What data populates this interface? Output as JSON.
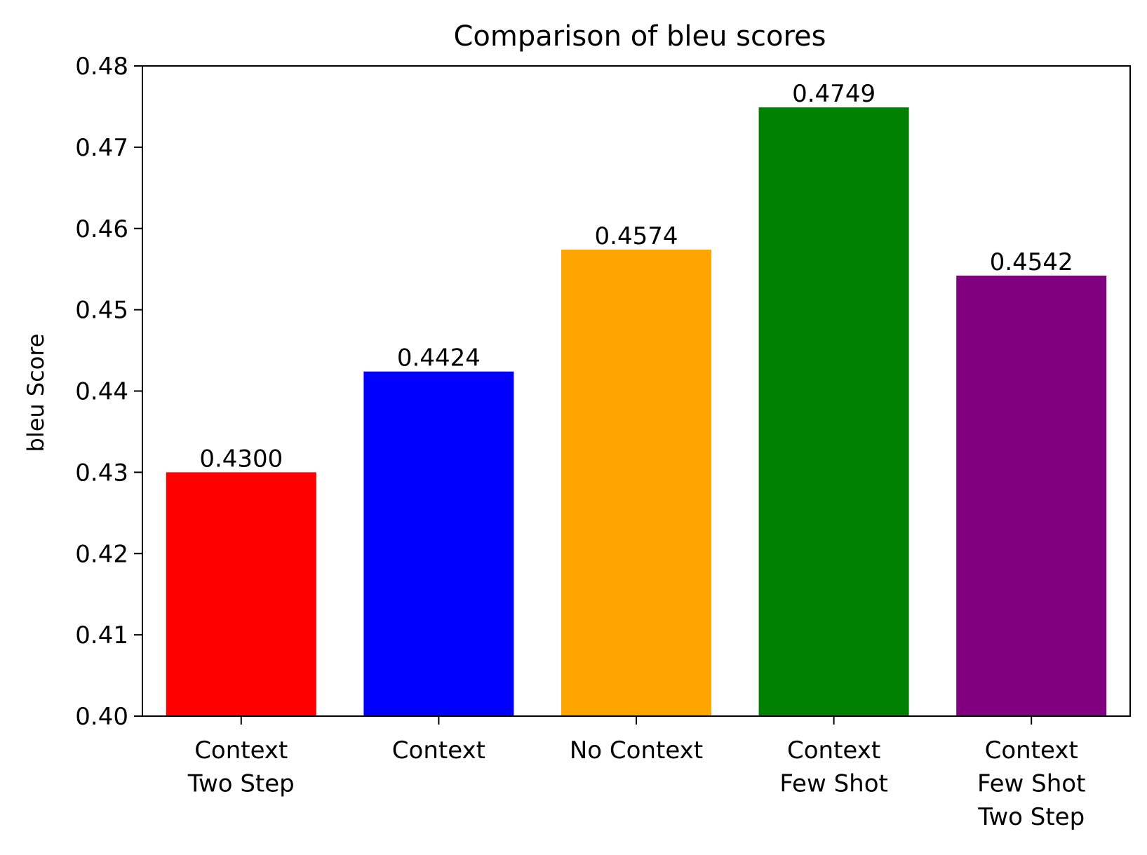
{
  "chart_data": {
    "type": "bar",
    "title": "Comparison of bleu scores",
    "xlabel": "",
    "ylabel": "bleu Score",
    "categories": [
      [
        "Context",
        "Two Step"
      ],
      [
        "Context"
      ],
      [
        "No Context"
      ],
      [
        "Context",
        "Few Shot"
      ],
      [
        "Context",
        "Few Shot",
        "Two Step"
      ]
    ],
    "values": [
      0.43,
      0.4424,
      0.4574,
      0.4749,
      0.4542
    ],
    "value_labels": [
      "0.4300",
      "0.4424",
      "0.4574",
      "0.4749",
      "0.4542"
    ],
    "colors": [
      "#ff0000",
      "#0000ff",
      "#ffa500",
      "#008000",
      "#800080"
    ],
    "ylim": [
      0.4,
      0.48
    ],
    "yticks": [
      0.4,
      0.41,
      0.42,
      0.43,
      0.44,
      0.45,
      0.46,
      0.47,
      0.48
    ],
    "ytick_labels": [
      "0.40",
      "0.41",
      "0.42",
      "0.43",
      "0.44",
      "0.45",
      "0.46",
      "0.47",
      "0.48"
    ],
    "grid": false,
    "legend": "none"
  }
}
